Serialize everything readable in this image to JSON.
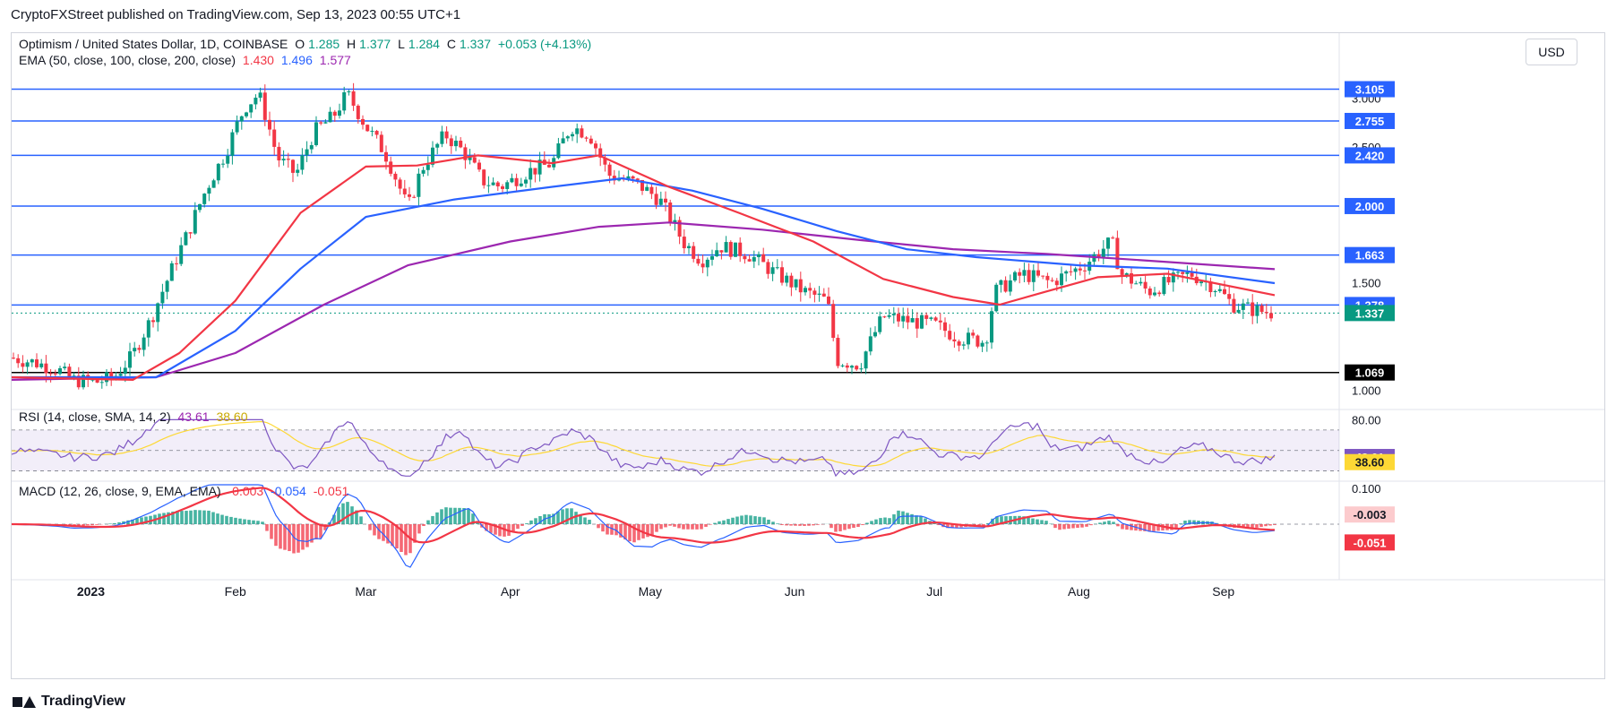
{
  "publisher": "CryptoFXStreet published on TradingView.com, Sep 13, 2023 00:55 UTC+1",
  "currency_button": "USD",
  "footer_brand": "TradingView",
  "legend": {
    "symbol": "Optimism / United States Dollar, 1D, COINBASE",
    "o_label": "O",
    "o": "1.285",
    "h_label": "H",
    "h": "1.377",
    "l_label": "L",
    "l": "1.284",
    "c_label": "C",
    "c": "1.337",
    "change": "+0.053 (+4.13%)",
    "ema_label": "EMA (50, close, 100, close, 200, close)",
    "ema50": "1.430",
    "ema100": "1.496",
    "ema200": "1.577",
    "rsi_label": "RSI (14, close, SMA, 14, 2)",
    "rsi_val": "43.61",
    "rsi_sma": "38.60",
    "macd_label": "MACD (12, 26, close, 9, EMA, EMA)",
    "macd_hist": "-0.003",
    "macd_line": "-0.054",
    "macd_signal": "-0.051"
  },
  "colors": {
    "up": "#089981",
    "down": "#f23645",
    "ema50": "#f23645",
    "ema100": "#2962ff",
    "ema200": "#9c27b0",
    "hline": "#2962ff",
    "support": "#000000",
    "rsi": "#7e57c2",
    "rsi_sma": "#fdd835",
    "macd": "#2962ff",
    "signal": "#f23645"
  },
  "chart_data": {
    "type": "candlestick",
    "price_axis": {
      "ticks": [
        "3.000",
        "2.500",
        "2.000",
        "1.500",
        "1.000"
      ],
      "scale": "log",
      "ylim": [
        0.93,
        3.35
      ]
    },
    "time_axis": {
      "labels": [
        "2023",
        "Feb",
        "Mar",
        "Apr",
        "May",
        "Jun",
        "Jul",
        "Aug",
        "Sep"
      ]
    },
    "horizontal_levels": [
      {
        "value": 3.105,
        "label": "3.105",
        "color": "#2962ff"
      },
      {
        "value": 2.755,
        "label": "2.755",
        "color": "#2962ff"
      },
      {
        "value": 2.42,
        "label": "2.420",
        "color": "#2962ff"
      },
      {
        "value": 2.0,
        "label": "2.000",
        "color": "#2962ff"
      },
      {
        "value": 1.663,
        "label": "1.663",
        "color": "#2962ff"
      },
      {
        "value": 1.378,
        "label": "1.378",
        "color": "#2962ff"
      },
      {
        "value": 1.069,
        "label": "1.069",
        "color": "#000000"
      }
    ],
    "current_price": {
      "value": 1.337,
      "label": "1.337"
    },
    "close_path": [
      [
        "2022-12-15",
        1.13
      ],
      [
        "2022-12-20",
        1.11
      ],
      [
        "2022-12-25",
        1.08
      ],
      [
        "2022-12-28",
        1.04
      ],
      [
        "2023-01-02",
        1.03
      ],
      [
        "2023-01-06",
        1.05
      ],
      [
        "2023-01-10",
        1.14
      ],
      [
        "2023-01-14",
        1.31
      ],
      [
        "2023-01-18",
        1.55
      ],
      [
        "2023-01-22",
        1.82
      ],
      [
        "2023-01-26",
        2.15
      ],
      [
        "2023-01-30",
        2.45
      ],
      [
        "2023-02-03",
        2.9
      ],
      [
        "2023-02-06",
        3.05
      ],
      [
        "2023-02-10",
        2.4
      ],
      [
        "2023-02-14",
        2.25
      ],
      [
        "2023-02-18",
        2.65
      ],
      [
        "2023-02-22",
        2.8
      ],
      [
        "2023-02-25",
        3.05
      ],
      [
        "2023-03-01",
        2.7
      ],
      [
        "2023-03-05",
        2.45
      ],
      [
        "2023-03-10",
        1.98
      ],
      [
        "2023-03-13",
        2.3
      ],
      [
        "2023-03-18",
        2.62
      ],
      [
        "2023-03-22",
        2.45
      ],
      [
        "2023-03-26",
        2.2
      ],
      [
        "2023-03-30",
        2.15
      ],
      [
        "2023-04-05",
        2.28
      ],
      [
        "2023-04-10",
        2.35
      ],
      [
        "2023-04-14",
        2.7
      ],
      [
        "2023-04-18",
        2.62
      ],
      [
        "2023-04-22",
        2.25
      ],
      [
        "2023-04-28",
        2.18
      ],
      [
        "2023-05-03",
        2.05
      ],
      [
        "2023-05-08",
        1.75
      ],
      [
        "2023-05-12",
        1.63
      ],
      [
        "2023-05-16",
        1.72
      ],
      [
        "2023-05-22",
        1.67
      ],
      [
        "2023-05-28",
        1.55
      ],
      [
        "2023-06-03",
        1.45
      ],
      [
        "2023-06-08",
        1.4
      ],
      [
        "2023-06-10",
        1.12
      ],
      [
        "2023-06-15",
        1.1
      ],
      [
        "2023-06-20",
        1.32
      ],
      [
        "2023-06-25",
        1.3
      ],
      [
        "2023-07-01",
        1.28
      ],
      [
        "2023-07-06",
        1.22
      ],
      [
        "2023-07-12",
        1.2
      ],
      [
        "2023-07-14",
        1.45
      ],
      [
        "2023-07-20",
        1.55
      ],
      [
        "2023-07-26",
        1.5
      ],
      [
        "2023-08-02",
        1.6
      ],
      [
        "2023-08-08",
        1.75
      ],
      [
        "2023-08-10",
        1.55
      ],
      [
        "2023-08-16",
        1.45
      ],
      [
        "2023-08-20",
        1.5
      ],
      [
        "2023-08-25",
        1.55
      ],
      [
        "2023-08-30",
        1.48
      ],
      [
        "2023-09-03",
        1.38
      ],
      [
        "2023-09-08",
        1.35
      ],
      [
        "2023-09-12",
        1.337
      ]
    ],
    "ema50_path": [
      [
        "2022-12-15",
        1.05
      ],
      [
        "2023-01-10",
        1.04
      ],
      [
        "2023-01-20",
        1.15
      ],
      [
        "2023-02-01",
        1.4
      ],
      [
        "2023-02-15",
        1.95
      ],
      [
        "2023-03-01",
        2.32
      ],
      [
        "2023-03-12",
        2.33
      ],
      [
        "2023-03-25",
        2.42
      ],
      [
        "2023-04-10",
        2.35
      ],
      [
        "2023-04-20",
        2.42
      ],
      [
        "2023-05-05",
        2.15
      ],
      [
        "2023-05-20",
        1.95
      ],
      [
        "2023-06-05",
        1.75
      ],
      [
        "2023-06-20",
        1.52
      ],
      [
        "2023-07-05",
        1.42
      ],
      [
        "2023-07-15",
        1.38
      ],
      [
        "2023-07-25",
        1.45
      ],
      [
        "2023-08-05",
        1.53
      ],
      [
        "2023-08-20",
        1.55
      ],
      [
        "2023-09-12",
        1.43
      ]
    ],
    "ema100_path": [
      [
        "2022-12-15",
        1.05
      ],
      [
        "2023-01-15",
        1.05
      ],
      [
        "2023-02-01",
        1.25
      ],
      [
        "2023-02-15",
        1.58
      ],
      [
        "2023-03-01",
        1.92
      ],
      [
        "2023-03-20",
        2.05
      ],
      [
        "2023-04-10",
        2.15
      ],
      [
        "2023-04-25",
        2.22
      ],
      [
        "2023-05-10",
        2.12
      ],
      [
        "2023-05-25",
        1.98
      ],
      [
        "2023-06-10",
        1.82
      ],
      [
        "2023-06-25",
        1.7
      ],
      [
        "2023-07-10",
        1.65
      ],
      [
        "2023-08-01",
        1.6
      ],
      [
        "2023-08-20",
        1.58
      ],
      [
        "2023-09-12",
        1.496
      ]
    ],
    "ema200_path": [
      [
        "2022-12-15",
        1.04
      ],
      [
        "2023-01-15",
        1.05
      ],
      [
        "2023-02-01",
        1.15
      ],
      [
        "2023-02-20",
        1.38
      ],
      [
        "2023-03-10",
        1.6
      ],
      [
        "2023-04-01",
        1.75
      ],
      [
        "2023-04-20",
        1.85
      ],
      [
        "2023-05-05",
        1.88
      ],
      [
        "2023-05-25",
        1.83
      ],
      [
        "2023-06-15",
        1.76
      ],
      [
        "2023-07-05",
        1.7
      ],
      [
        "2023-07-25",
        1.67
      ],
      [
        "2023-08-15",
        1.63
      ],
      [
        "2023-09-12",
        1.577
      ]
    ],
    "rsi": {
      "ylim": [
        20,
        90
      ],
      "ticks": [
        "80.00"
      ],
      "upper_band": 70,
      "lower_band": 30,
      "value": 43.61,
      "sma_value": 38.6
    },
    "macd": {
      "ticks": [
        "0.100"
      ],
      "macd": -0.054,
      "signal": -0.051,
      "histogram": -0.003
    }
  }
}
